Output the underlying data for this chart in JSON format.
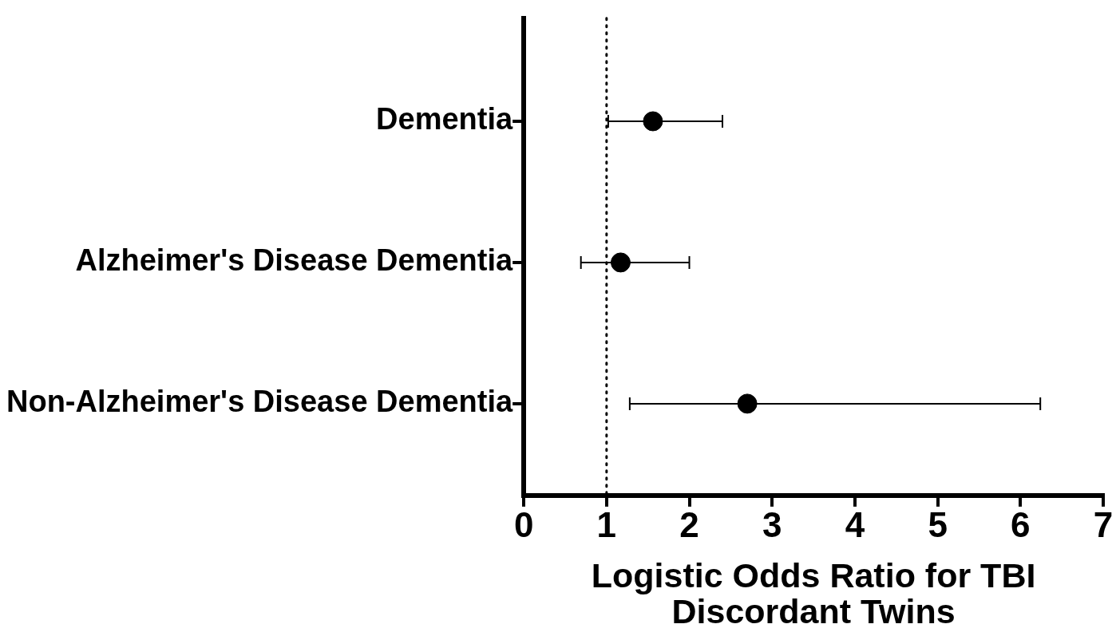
{
  "chart_data": {
    "type": "scatter",
    "orientation": "horizontal",
    "categories": [
      "Dementia",
      "Alzheimer's Disease Dementia",
      "Non-Alzheimer's Disease Dementia"
    ],
    "values": [
      1.56,
      1.17,
      2.7
    ],
    "errors": [
      [
        1.02,
        2.4
      ],
      [
        0.69,
        2.0
      ],
      [
        1.28,
        6.24
      ]
    ],
    "color": "#000000",
    "marker": "circle",
    "xlabel": "Logistic Odds Ratio for TBI Discordant Twins",
    "xlim": [
      0,
      7
    ],
    "xticks": [
      0,
      1,
      2,
      3,
      4,
      5,
      6,
      7
    ],
    "ref_lines": [
      {
        "axis": "x",
        "value": 1,
        "line_style": "dotted",
        "color": "#000000"
      }
    ],
    "grid": false,
    "legend": false
  }
}
